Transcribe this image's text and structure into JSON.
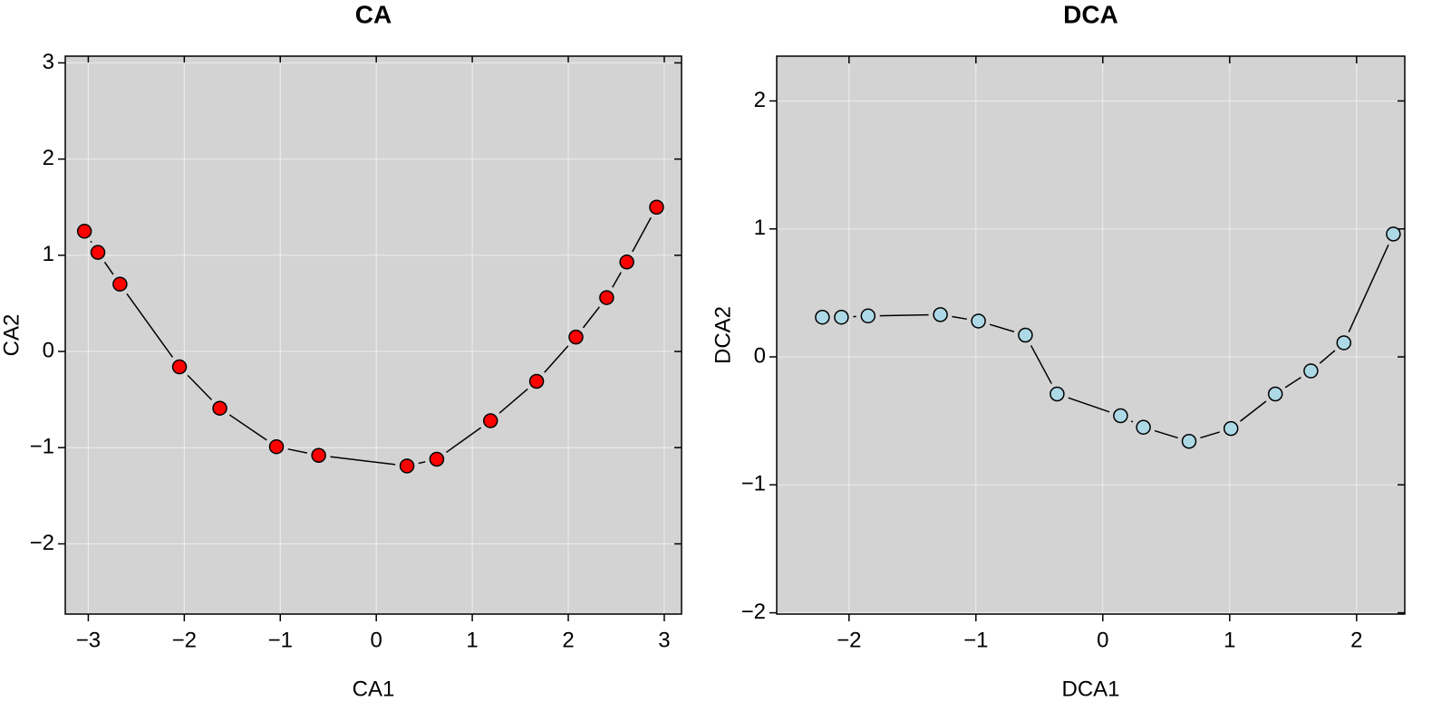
{
  "chart_data": [
    {
      "type": "scatter",
      "title": "CA",
      "x_label": "CA1",
      "y_label": "CA2",
      "color": "#ff0000",
      "grid": true,
      "connect": true,
      "x": [
        -3.04,
        -2.9,
        -2.67,
        -2.05,
        -1.63,
        -1.04,
        -0.6,
        0.32,
        0.63,
        1.19,
        1.67,
        2.08,
        2.4,
        2.61,
        2.92
      ],
      "y": [
        1.25,
        1.03,
        0.7,
        -0.16,
        -0.59,
        -0.99,
        -1.08,
        -1.19,
        -1.12,
        -0.72,
        -0.31,
        0.15,
        0.56,
        0.93,
        1.5
      ],
      "xlim": [
        -3.24,
        3.18
      ],
      "ylim": [
        -2.73,
        3.07
      ],
      "xticks": [
        {
          "value": -3,
          "label": "−3"
        },
        {
          "value": -2,
          "label": "−2"
        },
        {
          "value": -1,
          "label": "−1"
        },
        0,
        1,
        2,
        3
      ],
      "yticks": [
        {
          "value": -2,
          "label": "−2"
        },
        {
          "value": -1,
          "label": "−1"
        },
        0,
        1,
        2,
        3
      ]
    },
    {
      "type": "scatter",
      "title": "DCA",
      "x_label": "DCA1",
      "y_label": "DCA2",
      "color": "#add8e6",
      "grid": true,
      "connect": true,
      "x": [
        -2.21,
        -2.06,
        -1.85,
        -1.28,
        -0.98,
        -0.61,
        -0.36,
        0.14,
        0.32,
        0.68,
        1.01,
        1.36,
        1.64,
        1.9,
        2.29
      ],
      "y": [
        0.31,
        0.31,
        0.32,
        0.33,
        0.28,
        0.17,
        -0.29,
        -0.46,
        -0.55,
        -0.66,
        -0.56,
        -0.29,
        -0.11,
        0.11,
        0.96
      ],
      "xlim": [
        -2.57,
        2.38
      ],
      "ylim": [
        -2.01,
        2.35
      ],
      "xticks": [
        {
          "value": -2,
          "label": "−2"
        },
        {
          "value": -1,
          "label": "−1"
        },
        0,
        1,
        2
      ],
      "yticks": [
        {
          "value": -2,
          "label": "−2"
        },
        {
          "value": -1,
          "label": "−1"
        },
        0,
        1,
        2
      ]
    }
  ]
}
